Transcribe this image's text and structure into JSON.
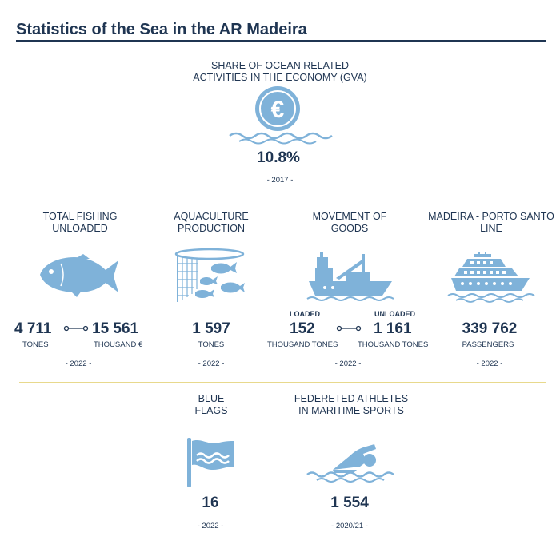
{
  "title": "Statistics of the Sea in the AR Madeira",
  "share": {
    "caption_line1": "SHARE OF OCEAN RELATED",
    "caption_line2": "ACTIVITIES IN THE ECONOMY (GVA)",
    "value": "10.8%",
    "year": "- 2017 -",
    "icon": "euro-coin-icon"
  },
  "fishing": {
    "caption_line1": "TOTAL FISHING",
    "caption_line2": "UNLOADED",
    "value1": "4 711",
    "unit1": "TONES",
    "value2": "15 561",
    "unit2": "THOUSAND €",
    "year": "- 2022 -",
    "icon": "fish-icon"
  },
  "aquaculture": {
    "caption_line1": "AQUACULTURE",
    "caption_line2": "PRODUCTION",
    "value": "1 597",
    "unit": "TONES",
    "year": "- 2022 -",
    "icon": "fish-net-icon"
  },
  "goods": {
    "caption_line1": "MOVEMENT OF",
    "caption_line2": "GOODS",
    "label1": "LOADED",
    "value1": "152",
    "unit1": "THOUSAND TONES",
    "label2": "UNLOADED",
    "value2": "1 161",
    "unit2": "THOUSAND TONES",
    "year": "- 2022 -",
    "icon": "cargo-ship-icon"
  },
  "ferry": {
    "caption_line1": "MADEIRA - PORTO SANTO",
    "caption_line2": "LINE",
    "value": "339 762",
    "unit": "PASSENGERS",
    "year": "- 2022 -",
    "icon": "ferry-icon"
  },
  "flags": {
    "caption_line1": "BLUE",
    "caption_line2": "FLAGS",
    "value": "16",
    "year": "- 2022 -",
    "icon": "blue-flag-icon"
  },
  "athletes": {
    "caption_line1": "FEDERETED ATHLETES",
    "caption_line2": "IN MARITIME SPORTS",
    "value": "1 554",
    "year": "- 2020/21 -",
    "icon": "swimmer-icon"
  },
  "colors": {
    "text": "#1f3552",
    "icon": "#7fb2d9",
    "separator": "#e8d98c"
  }
}
